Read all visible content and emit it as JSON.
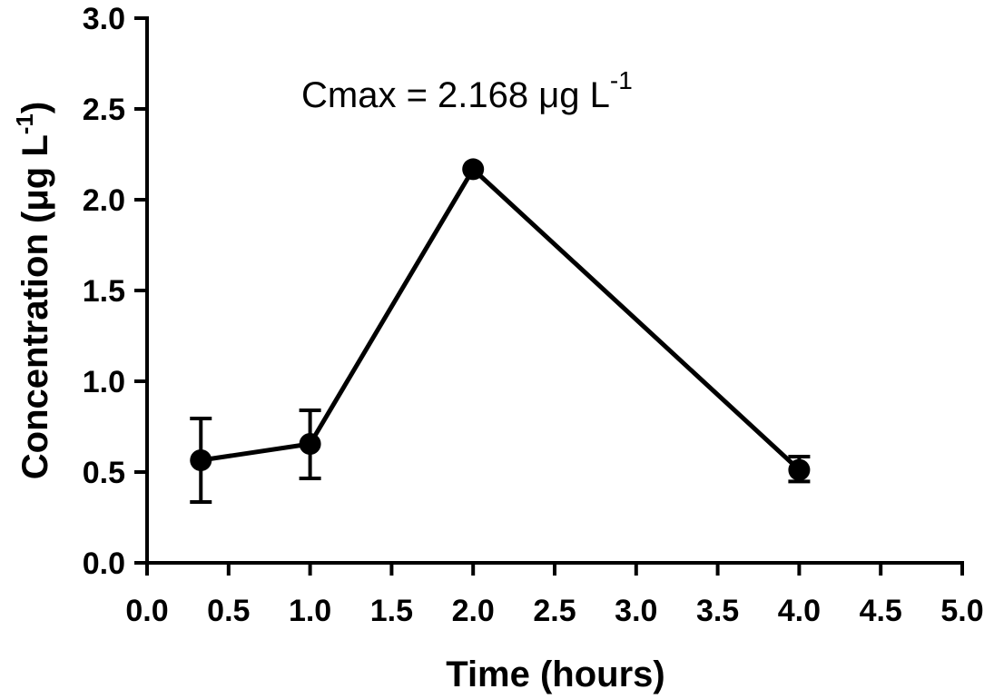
{
  "chart_data": {
    "type": "line",
    "xlabel": "Time (hours)",
    "ylabel_main": "Concentration (μg L",
    "ylabel_sup": "-1",
    "ylabel_close": ")",
    "xlim": [
      0,
      5
    ],
    "ylim": [
      0,
      3
    ],
    "xticks": [
      "0.0",
      "0.5",
      "1.0",
      "1.5",
      "2.0",
      "2.5",
      "3.0",
      "3.5",
      "4.0",
      "4.5",
      "5.0"
    ],
    "yticks": [
      "0.0",
      "0.5",
      "1.0",
      "1.5",
      "2.0",
      "2.5",
      "3.0"
    ],
    "grid": false,
    "annotation": {
      "text": "Cmax = 2.168 μg L",
      "sup": "-1"
    },
    "series": [
      {
        "x": [
          0.33,
          1.0,
          2.0,
          4.0
        ],
        "y": [
          0.565,
          0.655,
          2.168,
          0.512
        ],
        "err_low": [
          0.335,
          0.465,
          2.168,
          0.448
        ],
        "err_high": [
          0.795,
          0.84,
          2.168,
          0.585
        ]
      }
    ]
  }
}
